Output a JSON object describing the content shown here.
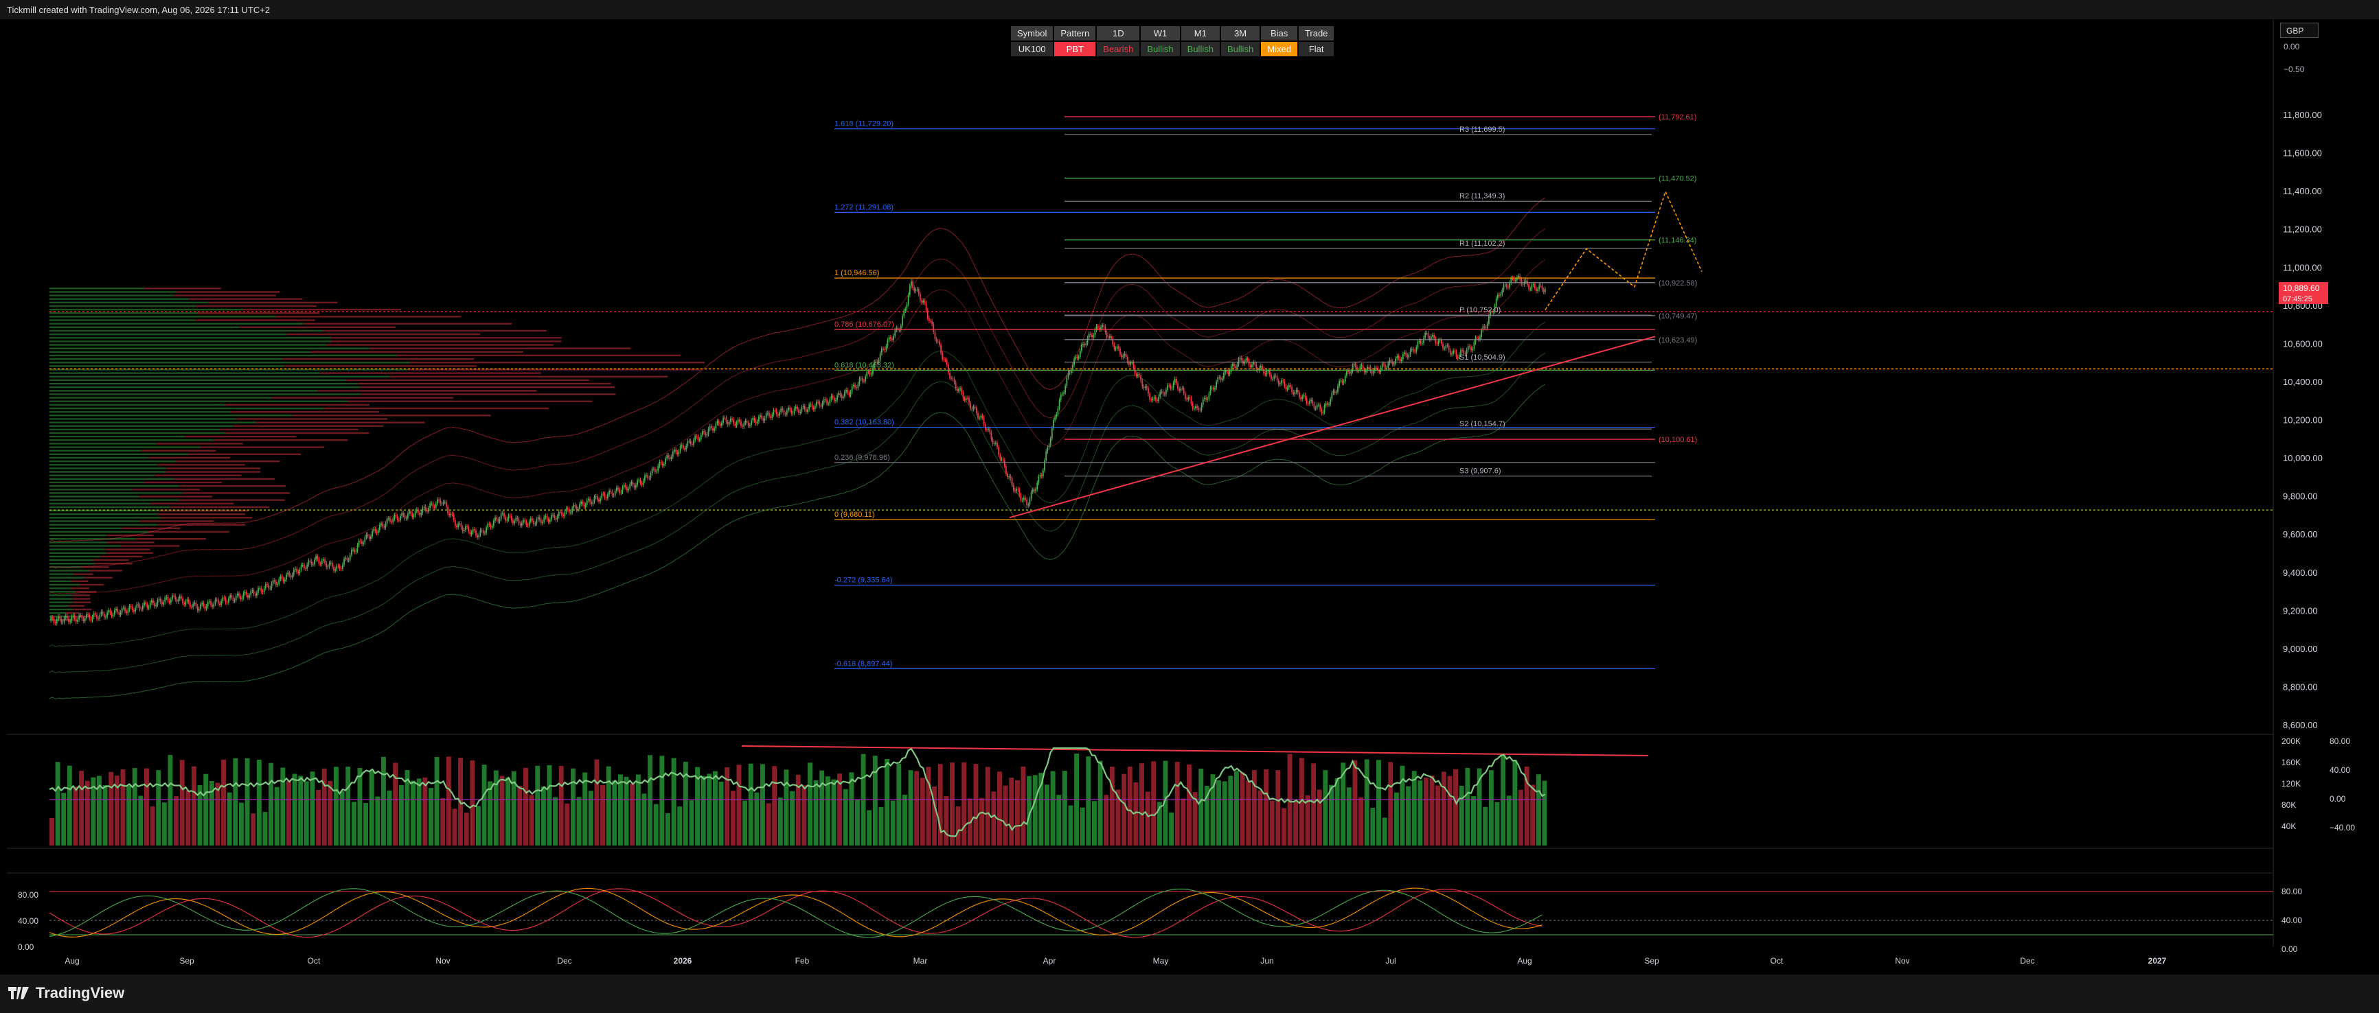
{
  "header": {
    "title": "Tickmill created with TradingView.com, Aug 06, 2026 17:11 UTC+2"
  },
  "footer": {
    "brand": "TradingView"
  },
  "currency": "GBP",
  "info_table": {
    "headers": [
      "Symbol",
      "Pattern",
      "1D",
      "W1",
      "M1",
      "3M",
      "Bias",
      "Trade"
    ],
    "values": [
      "UK100",
      "PBT",
      "Bearish",
      "Bullish",
      "Bullish",
      "Bullish",
      "Mixed",
      "Flat"
    ],
    "value_colors": [
      "#2a2a2a",
      "#f23645",
      "#2a2a2a",
      "#2a2a2a",
      "#2a2a2a",
      "#2a2a2a",
      "#ff9800",
      "#2a2a2a"
    ],
    "text_colors": [
      "#e6e6e6",
      "#ffffff",
      "#f23645",
      "#4caf50",
      "#4caf50",
      "#4caf50",
      "#ffffff",
      "#e6e6e6"
    ]
  },
  "price_badge": {
    "price": "10,889.60",
    "countdown": "07:45:25"
  },
  "colors": {
    "up": "#4caf50",
    "down": "#f23645",
    "fib": "#2962ff",
    "fib_key": "#ff9800"
  },
  "chart_data": {
    "type": "candlestick",
    "symbol": "UK100",
    "x_tick_labels": [
      "Aug",
      "Sep",
      "Oct",
      "Nov",
      "Dec",
      "2026",
      "Feb",
      "Mar",
      "Apr",
      "May",
      "Jun",
      "Jul",
      "Aug",
      "Sep",
      "Oct",
      "Nov",
      "Dec",
      "2027"
    ],
    "y_ticks": [
      8600,
      8800,
      9000,
      9200,
      9400,
      9600,
      9800,
      10000,
      10200,
      10400,
      10600,
      10800,
      11000,
      11200,
      11400,
      11600,
      11800
    ],
    "y_tick_labels": [
      "8,600.00",
      "8,800.00",
      "9,000.00",
      "9,200.00",
      "9,400.00",
      "9,600.00",
      "9,800.00",
      "10,000.00",
      "10,200.00",
      "10,400.00",
      "10,600.00",
      "10,800.00",
      "11,000.00",
      "11,200.00",
      "11,400.00",
      "11,600.00",
      "11,800.00"
    ],
    "ylim": [
      8560,
      12000
    ],
    "top_scale_labels": [
      "0.00",
      "−0.50"
    ],
    "price_path": [
      [
        0,
        9150
      ],
      [
        30,
        9170
      ],
      [
        60,
        9220
      ],
      [
        85,
        9270
      ],
      [
        100,
        9220
      ],
      [
        120,
        9260
      ],
      [
        140,
        9300
      ],
      [
        160,
        9380
      ],
      [
        180,
        9470
      ],
      [
        195,
        9420
      ],
      [
        210,
        9560
      ],
      [
        230,
        9680
      ],
      [
        250,
        9720
      ],
      [
        265,
        9780
      ],
      [
        275,
        9650
      ],
      [
        290,
        9600
      ],
      [
        305,
        9700
      ],
      [
        320,
        9660
      ],
      [
        340,
        9690
      ],
      [
        360,
        9760
      ],
      [
        380,
        9820
      ],
      [
        400,
        9880
      ],
      [
        420,
        10020
      ],
      [
        440,
        10120
      ],
      [
        455,
        10200
      ],
      [
        470,
        10180
      ],
      [
        490,
        10240
      ],
      [
        510,
        10260
      ],
      [
        525,
        10300
      ],
      [
        540,
        10350
      ],
      [
        555,
        10460
      ],
      [
        565,
        10600
      ],
      [
        575,
        10700
      ],
      [
        582,
        10920
      ],
      [
        590,
        10820
      ],
      [
        600,
        10600
      ],
      [
        610,
        10400
      ],
      [
        620,
        10300
      ],
      [
        630,
        10200
      ],
      [
        640,
        10050
      ],
      [
        650,
        9860
      ],
      [
        660,
        9760
      ],
      [
        670,
        9920
      ],
      [
        680,
        10250
      ],
      [
        690,
        10480
      ],
      [
        700,
        10620
      ],
      [
        710,
        10700
      ],
      [
        720,
        10580
      ],
      [
        730,
        10500
      ],
      [
        745,
        10300
      ],
      [
        760,
        10400
      ],
      [
        775,
        10250
      ],
      [
        790,
        10420
      ],
      [
        805,
        10520
      ],
      [
        820,
        10460
      ],
      [
        835,
        10380
      ],
      [
        850,
        10300
      ],
      [
        860,
        10250
      ],
      [
        870,
        10380
      ],
      [
        880,
        10480
      ],
      [
        895,
        10460
      ],
      [
        910,
        10520
      ],
      [
        920,
        10560
      ],
      [
        930,
        10650
      ],
      [
        940,
        10600
      ],
      [
        950,
        10540
      ],
      [
        960,
        10580
      ],
      [
        970,
        10700
      ],
      [
        980,
        10880
      ],
      [
        990,
        10950
      ],
      [
        1000,
        10900
      ],
      [
        1010,
        10890
      ]
    ],
    "fib_levels": [
      {
        "label": "1.618 (11,729.20)",
        "value": 11729.2,
        "color": "#2962ff"
      },
      {
        "label": "1.272 (11,291.08)",
        "value": 11291.08,
        "color": "#2962ff"
      },
      {
        "label": "1 (10,946.56)",
        "value": 10946.56,
        "color": "#ff9800"
      },
      {
        "label": "0.786 (10,676.07)",
        "value": 10676.07,
        "color": "#f23645"
      },
      {
        "label": "0.618 (10,463.32)",
        "value": 10463.32,
        "color": "#4caf50"
      },
      {
        "label": "0.382 (10,163.80)",
        "value": 10163.8,
        "color": "#2962ff"
      },
      {
        "label": "0.236 (9,978.96)",
        "value": 9978.96,
        "color": "#787b86"
      },
      {
        "label": "0 (9,680.11)",
        "value": 9680.11,
        "color": "#ff9800"
      },
      {
        "label": "-0.272 (9,335.64)",
        "value": 9335.64,
        "color": "#2962ff"
      },
      {
        "label": "-0.618 (8,897.44)",
        "value": 8897.44,
        "color": "#2962ff"
      }
    ],
    "pivots": [
      {
        "label": "R3 (11,699.5)",
        "value": 11699.5
      },
      {
        "label": "R2 (11,349.3)",
        "value": 11349.3
      },
      {
        "label": "R1 (11,102.2)",
        "value": 11102.2
      },
      {
        "label": "P (10,752.0)",
        "value": 10752
      },
      {
        "label": "S1 (10,504.9)",
        "value": 10504.9
      },
      {
        "label": "S2 (10,154.7)",
        "value": 10154.7
      },
      {
        "label": "S3 (9,907.6)",
        "value": 9907.6
      }
    ],
    "targets": [
      {
        "label": "(11,792.61)",
        "value": 11792.61,
        "color": "#f23645"
      },
      {
        "label": "(11,470.52)",
        "value": 11470.52,
        "color": "#4caf50"
      },
      {
        "label": "(11,146.34)",
        "value": 11146.34,
        "color": "#4caf50"
      },
      {
        "label": "(10,922.58)",
        "value": 10922.58,
        "color": "#787b86"
      },
      {
        "label": "(10,749.47)",
        "value": 10749.47,
        "color": "#787b86"
      },
      {
        "label": "(10,623.49)",
        "value": 10623.49,
        "color": "#787b86"
      },
      {
        "label": "(10,100.61)",
        "value": 10100.61,
        "color": "#f23645"
      }
    ],
    "volume_axis_labels": [
      "200K",
      "160K",
      "120K",
      "80K",
      "40K"
    ],
    "oscillator_labels": [
      "80.00",
      "40.00",
      "0.00",
      "−40.00"
    ],
    "stoch_labels": [
      "80.00",
      "40.00",
      "0.00"
    ],
    "stoch_left_labels": [
      "80.00",
      "40.00",
      "0.00"
    ]
  }
}
